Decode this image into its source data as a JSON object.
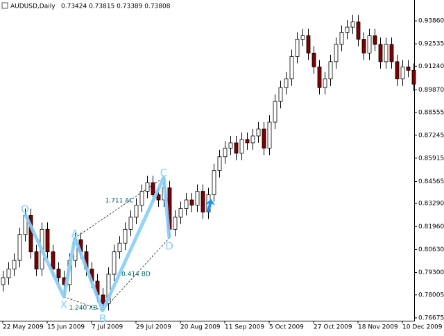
{
  "chart_data": {
    "type": "candlestick",
    "title": "AUDUSD,Daily",
    "subtitle": "0.73424 0.73815 0.73389 0.73808",
    "up_color": "#ffffff",
    "down_color": "#800000",
    "wick_color": "#000000",
    "pattern_color": "#87cefa",
    "arrow_color": "#1e90ff",
    "categories": [
      "22 May 2009",
      null,
      null,
      null,
      null,
      null,
      null,
      null,
      "15 Jun 2009",
      null,
      null,
      null,
      null,
      null,
      null,
      null,
      "7 Jul 2009",
      null,
      null,
      null,
      null,
      null,
      null,
      null,
      "29 Jul 2009",
      null,
      null,
      null,
      null,
      null,
      null,
      null,
      "20 Aug 2009",
      null,
      null,
      null,
      null,
      null,
      null,
      null,
      "11 Sep 2009",
      null,
      null,
      null,
      null,
      null,
      null,
      null,
      "5 Oct 2009",
      null,
      null,
      null,
      null,
      null,
      null,
      null,
      "27 Oct 2009",
      null,
      null,
      null,
      null,
      null,
      null,
      null,
      "18 Nov 2009",
      null,
      null,
      null,
      null,
      null,
      null,
      null,
      "10 Dec 2009",
      null,
      null
    ],
    "candles": [
      [
        0.786,
        0.794,
        0.782,
        0.79
      ],
      [
        0.79,
        0.799,
        0.786,
        0.795
      ],
      [
        0.795,
        0.804,
        0.791,
        0.8
      ],
      [
        0.8,
        0.819,
        0.796,
        0.815
      ],
      [
        0.815,
        0.83,
        0.811,
        0.826
      ],
      [
        0.826,
        0.83,
        0.801,
        0.805
      ],
      [
        0.805,
        0.809,
        0.791,
        0.795
      ],
      [
        0.795,
        0.822,
        0.791,
        0.818
      ],
      [
        0.818,
        0.822,
        0.801,
        0.805
      ],
      [
        0.805,
        0.809,
        0.791,
        0.795
      ],
      [
        0.795,
        0.799,
        0.786,
        0.79
      ],
      [
        0.79,
        0.794,
        0.779,
        0.786
      ],
      [
        0.786,
        0.804,
        0.782,
        0.8
      ],
      [
        0.8,
        0.816,
        0.796,
        0.812
      ],
      [
        0.812,
        0.816,
        0.801,
        0.805
      ],
      [
        0.805,
        0.809,
        0.791,
        0.795
      ],
      [
        0.795,
        0.799,
        0.784,
        0.788
      ],
      [
        0.788,
        0.792,
        0.776,
        0.78
      ],
      [
        0.78,
        0.784,
        0.771,
        0.775
      ],
      [
        0.775,
        0.796,
        0.771,
        0.792
      ],
      [
        0.792,
        0.809,
        0.788,
        0.805
      ],
      [
        0.805,
        0.814,
        0.801,
        0.81
      ],
      [
        0.81,
        0.822,
        0.806,
        0.818
      ],
      [
        0.818,
        0.829,
        0.814,
        0.825
      ],
      [
        0.825,
        0.836,
        0.821,
        0.832
      ],
      [
        0.832,
        0.844,
        0.828,
        0.84
      ],
      [
        0.84,
        0.849,
        0.836,
        0.845
      ],
      [
        0.845,
        0.849,
        0.834,
        0.838
      ],
      [
        0.838,
        0.842,
        0.831,
        0.835
      ],
      [
        0.835,
        0.848,
        0.831,
        0.842
      ],
      [
        0.842,
        0.846,
        0.813,
        0.818
      ],
      [
        0.818,
        0.829,
        0.814,
        0.825
      ],
      [
        0.825,
        0.834,
        0.821,
        0.83
      ],
      [
        0.83,
        0.839,
        0.826,
        0.835
      ],
      [
        0.835,
        0.839,
        0.828,
        0.832
      ],
      [
        0.832,
        0.844,
        0.828,
        0.84
      ],
      [
        0.84,
        0.844,
        0.824,
        0.828
      ],
      [
        0.828,
        0.842,
        0.824,
        0.838
      ],
      [
        0.838,
        0.856,
        0.834,
        0.852
      ],
      [
        0.852,
        0.864,
        0.848,
        0.86
      ],
      [
        0.86,
        0.869,
        0.856,
        0.865
      ],
      [
        0.865,
        0.872,
        0.861,
        0.868
      ],
      [
        0.868,
        0.872,
        0.858,
        0.862
      ],
      [
        0.862,
        0.874,
        0.858,
        0.87
      ],
      [
        0.87,
        0.874,
        0.864,
        0.868
      ],
      [
        0.868,
        0.876,
        0.864,
        0.872
      ],
      [
        0.872,
        0.88,
        0.868,
        0.876
      ],
      [
        0.876,
        0.88,
        0.861,
        0.865
      ],
      [
        0.865,
        0.884,
        0.861,
        0.88
      ],
      [
        0.88,
        0.896,
        0.876,
        0.892
      ],
      [
        0.892,
        0.904,
        0.888,
        0.9
      ],
      [
        0.9,
        0.909,
        0.896,
        0.905
      ],
      [
        0.905,
        0.922,
        0.901,
        0.918
      ],
      [
        0.918,
        0.932,
        0.914,
        0.928
      ],
      [
        0.928,
        0.934,
        0.924,
        0.93
      ],
      [
        0.93,
        0.934,
        0.916,
        0.92
      ],
      [
        0.92,
        0.924,
        0.908,
        0.912
      ],
      [
        0.912,
        0.916,
        0.896,
        0.9
      ],
      [
        0.9,
        0.909,
        0.896,
        0.905
      ],
      [
        0.905,
        0.919,
        0.901,
        0.915
      ],
      [
        0.915,
        0.929,
        0.911,
        0.925
      ],
      [
        0.925,
        0.936,
        0.921,
        0.932
      ],
      [
        0.932,
        0.939,
        0.928,
        0.935
      ],
      [
        0.935,
        0.942,
        0.931,
        0.938
      ],
      [
        0.938,
        0.942,
        0.924,
        0.928
      ],
      [
        0.928,
        0.932,
        0.916,
        0.92
      ],
      [
        0.92,
        0.934,
        0.916,
        0.93
      ],
      [
        0.93,
        0.934,
        0.921,
        0.925
      ],
      [
        0.925,
        0.929,
        0.911,
        0.915
      ],
      [
        0.915,
        0.929,
        0.911,
        0.925
      ],
      [
        0.925,
        0.929,
        0.911,
        0.915
      ],
      [
        0.915,
        0.919,
        0.901,
        0.905
      ],
      [
        0.905,
        0.916,
        0.901,
        0.912
      ],
      [
        0.912,
        0.916,
        0.906,
        0.91
      ],
      [
        0.91,
        0.914,
        0.898,
        0.902
      ]
    ],
    "ylim": [
      0.7651,
      0.9507
    ],
    "yticks": [
      {
        "value": 0.9386,
        "label": "0.93860"
      },
      {
        "value": 0.92535,
        "label": "0.92535"
      },
      {
        "value": 0.9124,
        "label": "0.91240"
      },
      {
        "value": 0.8987,
        "label": "0.89870"
      },
      {
        "value": 0.88555,
        "label": "0.88555"
      },
      {
        "value": 0.87245,
        "label": "0.87245"
      },
      {
        "value": 0.85915,
        "label": "0.85915"
      },
      {
        "value": 0.84565,
        "label": "0.84565"
      },
      {
        "value": 0.8329,
        "label": "0.83290"
      },
      {
        "value": 0.8196,
        "label": "0.81960"
      },
      {
        "value": 0.8063,
        "label": "0.80630"
      },
      {
        "value": 0.793,
        "label": "0.79300"
      },
      {
        "value": 0.78005,
        "label": "0.78005"
      },
      {
        "value": 0.76675,
        "label": "0.76675"
      }
    ],
    "pattern": [
      {
        "label": "O",
        "index": 4,
        "price": 0.827
      },
      {
        "label": "X",
        "index": 11,
        "price": 0.779
      },
      {
        "label": "A",
        "index": 13,
        "price": 0.813
      },
      {
        "label": "B",
        "index": 18,
        "price": 0.771
      },
      {
        "label": "C",
        "index": 29,
        "price": 0.848
      },
      {
        "label": "D",
        "index": 30,
        "price": 0.813
      }
    ],
    "ratios": [
      "1.711 AC",
      "0.414 BD",
      "1.240 XB"
    ],
    "arrow": {
      "index": 37,
      "price": 0.832
    }
  }
}
